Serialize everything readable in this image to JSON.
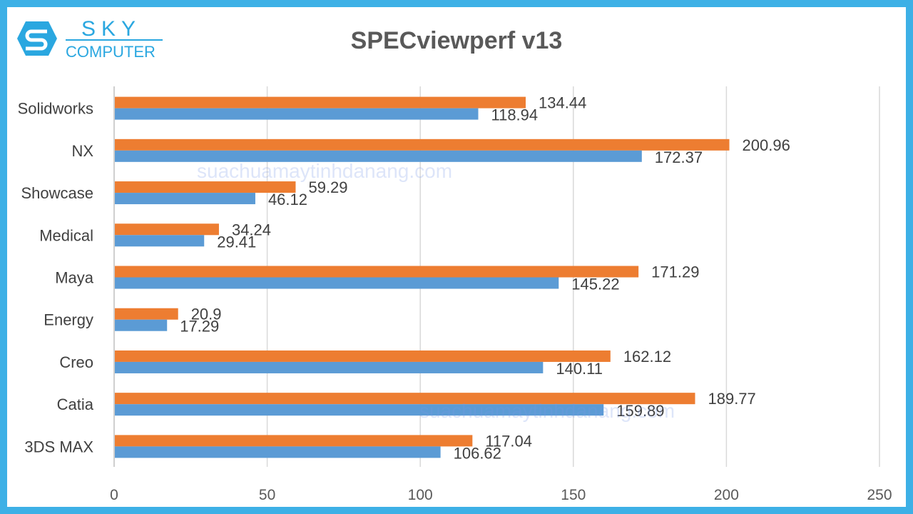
{
  "logo": {
    "line1": "SKY",
    "line2": "COMPUTER",
    "color": "#2aa7e0"
  },
  "watermarks": [
    "suachuamaytinhdanang.com",
    "suachuamaytinhdanang.com"
  ],
  "chart_data": {
    "type": "bar",
    "orientation": "horizontal",
    "title": "SPECviewperf v13",
    "categories": [
      "Solidworks",
      "NX",
      "Showcase",
      "Medical",
      "Maya",
      "Energy",
      "Creo",
      "Catia",
      "3DS MAX"
    ],
    "series": [
      {
        "color": "#ed7d31",
        "values": [
          134.44,
          200.96,
          59.29,
          34.24,
          171.29,
          20.9,
          162.12,
          189.77,
          117.04
        ]
      },
      {
        "color": "#5b9bd5",
        "values": [
          118.94,
          172.37,
          46.12,
          29.41,
          145.22,
          17.29,
          140.11,
          159.89,
          106.62
        ]
      }
    ],
    "xlim": [
      0,
      250
    ],
    "xticks": [
      "0",
      "50",
      "100",
      "150",
      "200",
      "250"
    ],
    "grid": true,
    "legend": "none",
    "border_color": "#3db0e6"
  }
}
